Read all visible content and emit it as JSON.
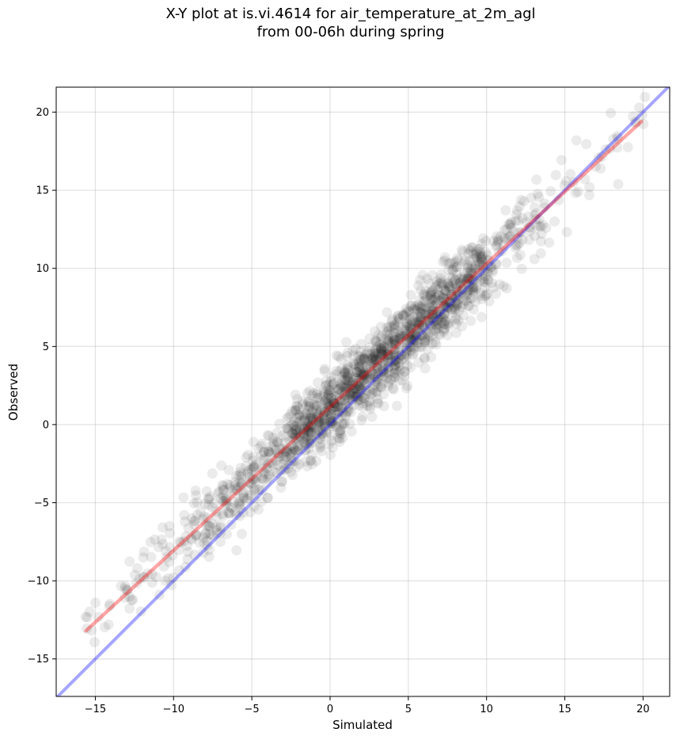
{
  "chart_data": {
    "type": "scatter",
    "title_line1": "X-Y plot at is.vi.4614 for air_temperature_at_2m_agl",
    "title_line2": "from 00-06h during spring",
    "xlabel": "Simulated",
    "ylabel": "Observed",
    "xlim": [
      -17.5,
      21.7
    ],
    "ylim": [
      -17.4,
      21.6
    ],
    "xticks": [
      -15,
      -10,
      -5,
      0,
      5,
      10,
      15,
      20
    ],
    "yticks": [
      -15,
      -10,
      -5,
      0,
      5,
      10,
      15,
      20
    ],
    "xtick_labels": [
      "−15",
      "−10",
      "−5",
      "0",
      "5",
      "10",
      "15",
      "20"
    ],
    "ytick_labels": [
      "−15",
      "−10",
      "−5",
      "0",
      "5",
      "10",
      "15",
      "20"
    ],
    "grid": true,
    "colors": {
      "points": "#000000",
      "fit_line": "#ff0000",
      "identity_line": "#0000ff",
      "grid": "#b0b0b0"
    },
    "fit_line": {
      "x": [
        -15.6,
        19.9
      ],
      "y": [
        -13.2,
        19.4
      ]
    },
    "identity_line": {
      "x": [
        -17.5,
        21.7
      ],
      "y": [
        -17.5,
        21.7
      ]
    },
    "sample_points": {
      "x": [
        -15.6,
        -15.0,
        -14.1,
        -13.2,
        -12.9,
        -12.6,
        -12.2,
        -11.9,
        -11.6,
        -11.1,
        -10.8,
        -10.4,
        -10.2,
        -10.0,
        -9.6,
        -9.3,
        -9.1,
        -8.8,
        -8.4,
        -8.0,
        -7.8,
        -7.5,
        -7.1,
        -6.9,
        -6.6,
        -6.3,
        -6.0,
        -5.8,
        -5.5,
        -5.3,
        -5.0,
        -4.8,
        -4.5,
        -4.2,
        -4.0,
        -3.8,
        -3.5,
        -3.2,
        -3.0,
        -2.7,
        -2.4,
        -2.2,
        -1.9,
        -1.6,
        -1.4,
        -1.1,
        -0.9,
        -0.6,
        -0.4,
        -0.1,
        0.1,
        0.3,
        0.5,
        0.8,
        1.0,
        1.2,
        1.4,
        1.7,
        1.9,
        2.1,
        2.3,
        2.6,
        2.8,
        3.0,
        3.2,
        3.5,
        3.7,
        3.9,
        4.2,
        4.4,
        4.6,
        4.9,
        5.1,
        5.3,
        5.6,
        5.8,
        6.1,
        6.3,
        6.5,
        6.8,
        7.0,
        7.3,
        7.5,
        7.8,
        8.0,
        8.3,
        8.6,
        8.9,
        9.2,
        9.5,
        9.8,
        10.2,
        10.5,
        10.9,
        11.3,
        11.7,
        12.1,
        12.5,
        13.0,
        13.5,
        14.0,
        14.6,
        15.1,
        15.8,
        16.4,
        17.1,
        17.9,
        18.6,
        19.3,
        19.9
      ]
    }
  }
}
